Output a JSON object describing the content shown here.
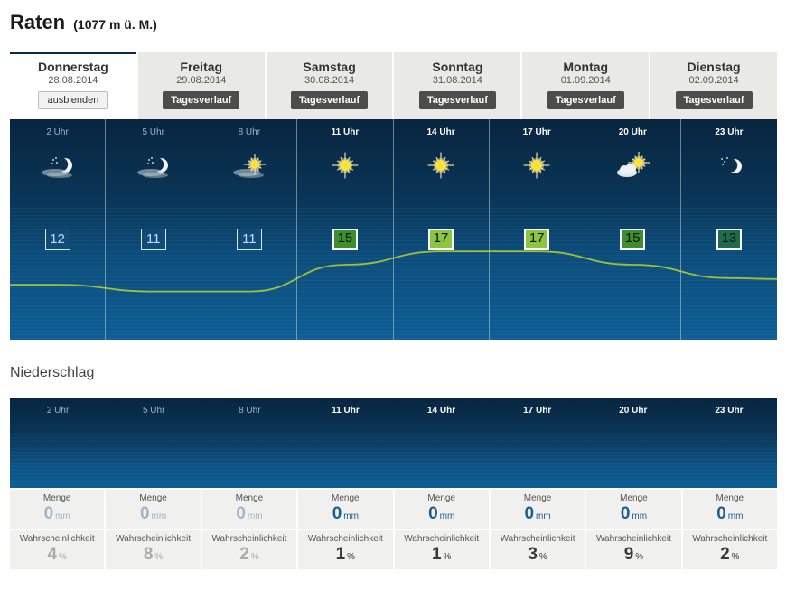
{
  "location": {
    "name": "Raten",
    "altitude": "(1077 m ü. M.)"
  },
  "days": [
    {
      "name": "Donnerstag",
      "date": "28.08.2014",
      "button": "ausblenden",
      "active": true
    },
    {
      "name": "Freitag",
      "date": "29.08.2014",
      "button": "Tagesverlauf",
      "active": false
    },
    {
      "name": "Samstag",
      "date": "30.08.2014",
      "button": "Tagesverlauf",
      "active": false
    },
    {
      "name": "Sonntag",
      "date": "31.08.2014",
      "button": "Tagesverlauf",
      "active": false
    },
    {
      "name": "Montag",
      "date": "01.09.2014",
      "button": "Tagesverlauf",
      "active": false
    },
    {
      "name": "Dienstag",
      "date": "02.09.2014",
      "button": "Tagesverlauf",
      "active": false
    }
  ],
  "hours": [
    {
      "label": "2 Uhr",
      "daytime": false,
      "icon": "moon-stars-fog-icon",
      "temp": "12",
      "temp_color": "",
      "menge": "0",
      "prob": "4"
    },
    {
      "label": "5 Uhr",
      "daytime": false,
      "icon": "moon-stars-fog-icon",
      "temp": "11",
      "temp_color": "",
      "menge": "0",
      "prob": "8"
    },
    {
      "label": "8 Uhr",
      "daytime": false,
      "icon": "sun-fog-icon",
      "temp": "11",
      "temp_color": "",
      "menge": "0",
      "prob": "2"
    },
    {
      "label": "11 Uhr",
      "daytime": true,
      "icon": "sun-icon",
      "temp": "15",
      "temp_color": "#3d8f2e",
      "menge": "0",
      "prob": "1"
    },
    {
      "label": "14 Uhr",
      "daytime": true,
      "icon": "sun-icon",
      "temp": "17",
      "temp_color": "#8cc63e",
      "menge": "0",
      "prob": "1"
    },
    {
      "label": "17 Uhr",
      "daytime": true,
      "icon": "sun-icon",
      "temp": "17",
      "temp_color": "#8cc63e",
      "menge": "0",
      "prob": "3"
    },
    {
      "label": "20 Uhr",
      "daytime": true,
      "icon": "sun-cloud-icon",
      "temp": "15",
      "temp_color": "#3d8f2e",
      "menge": "0",
      "prob": "9"
    },
    {
      "label": "23 Uhr",
      "daytime": true,
      "icon": "moon-stars-icon",
      "temp": "13",
      "temp_color": "#1f6b4d",
      "menge": "0",
      "prob": "2"
    }
  ],
  "precipitation": {
    "heading": "Niederschlag",
    "menge_label": "Menge",
    "menge_unit": "mm",
    "prob_label": "Wahrscheinlichkeit",
    "prob_unit": "%"
  },
  "colors": {
    "panel_dark": "#082540",
    "panel_light": "#0d5e95",
    "curve": "#9dbf3a"
  }
}
